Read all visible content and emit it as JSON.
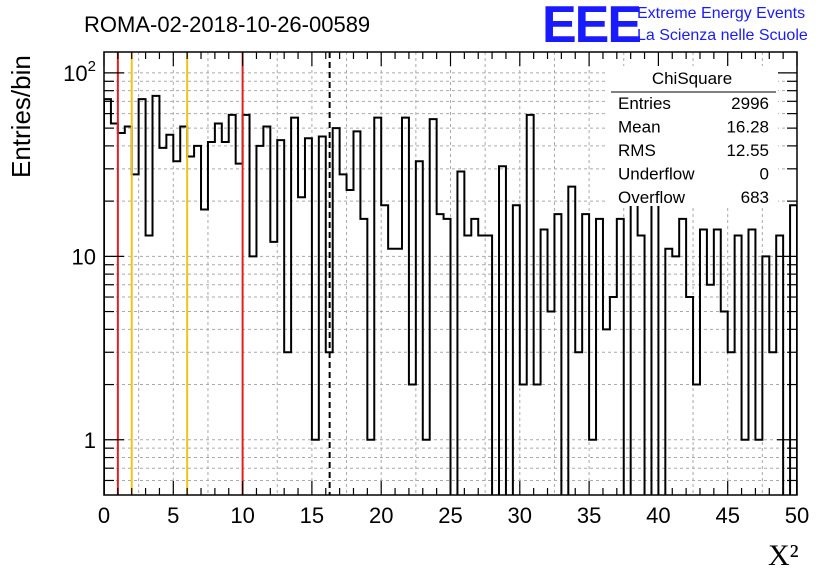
{
  "chart_data": {
    "type": "bar",
    "title": "ROMA-02-2018-10-26-00589",
    "xlabel": "X²",
    "ylabel": "Entries/bin",
    "xlim": [
      0,
      50
    ],
    "ylim": [
      0.5,
      130
    ],
    "y_scale": "log",
    "grid": true,
    "bin_width": 0.5,
    "x_ticks": [
      0,
      5,
      10,
      15,
      20,
      25,
      30,
      35,
      40,
      45,
      50
    ],
    "y_ticks": [
      1,
      10,
      100
    ],
    "y_tick_labels": [
      "1",
      "10",
      "10²"
    ],
    "values": [
      72,
      53,
      47,
      51,
      28,
      72,
      13,
      75,
      39,
      46,
      33,
      51,
      35,
      40,
      18,
      42,
      53,
      42,
      59,
      32,
      59,
      10,
      40,
      51,
      12,
      43,
      3,
      57,
      21,
      44,
      1,
      45,
      3,
      50,
      28,
      23,
      48,
      16,
      1,
      57,
      19,
      11,
      11,
      57,
      2,
      33,
      1,
      56,
      17,
      16,
      0,
      29,
      13,
      16,
      13,
      13,
      0,
      31,
      0,
      19,
      2,
      59,
      2,
      14,
      5,
      17,
      0,
      24,
      3,
      17,
      1,
      16,
      4,
      6,
      16,
      0,
      22,
      13,
      0,
      29,
      0,
      11,
      10,
      16,
      6,
      2,
      14,
      7,
      14,
      5,
      3,
      13,
      1,
      14,
      1,
      10,
      3,
      13,
      0,
      19
    ],
    "vertical_lines": [
      {
        "x": 1,
        "color": "#e02020",
        "style": "solid"
      },
      {
        "x": 2,
        "color": "#f2c21b",
        "style": "solid"
      },
      {
        "x": 6,
        "color": "#f2c21b",
        "style": "solid"
      },
      {
        "x": 10,
        "color": "#e02020",
        "style": "solid"
      },
      {
        "x": 16.28,
        "color": "#000000",
        "style": "dashed"
      }
    ],
    "stats_box": {
      "title": "ChiSquare",
      "rows": [
        {
          "label": "Entries",
          "value": "2996"
        },
        {
          "label": "Mean",
          "value": "16.28"
        },
        {
          "label": "RMS",
          "value": "12.55"
        },
        {
          "label": "Underflow",
          "value": "0"
        },
        {
          "label": "Overflow",
          "value": "683"
        }
      ]
    }
  },
  "logo": {
    "mark": "EEE",
    "line1": "Extreme Energy Events",
    "line2": "La Scienza nelle Scuole",
    "color": "#1a1aff"
  }
}
